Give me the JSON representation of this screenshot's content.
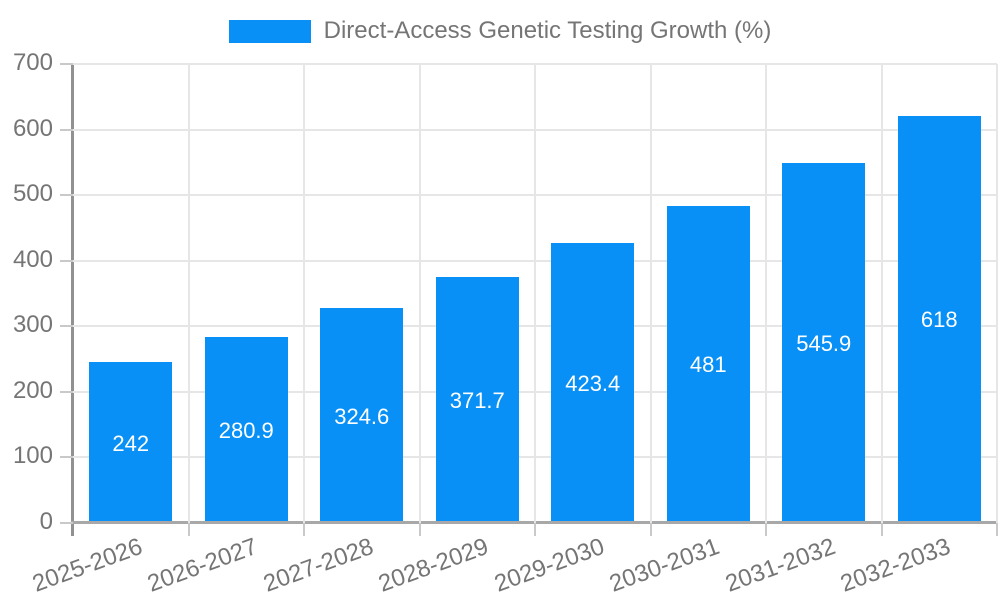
{
  "legend": {
    "label": "Direct-Access Genetic Testing Growth (%)"
  },
  "colors": {
    "bar": "#0890f6",
    "grid": "#e6e6e6",
    "tick": "#c9c9c9",
    "axis_line": "#919191",
    "label_text": "#757575",
    "value_text": "#ffffff",
    "background": "#ffffff"
  },
  "chart_data": {
    "type": "bar",
    "title": "Direct-Access Genetic Testing Growth (%)",
    "categories": [
      "2025-2026",
      "2026-2027",
      "2027-2028",
      "2028-2029",
      "2029-2030",
      "2030-2031",
      "2031-2032",
      "2032-2033"
    ],
    "values": [
      242,
      280.9,
      324.6,
      371.7,
      423.4,
      481,
      545.9,
      618
    ],
    "xlabel": "",
    "ylabel": "",
    "ylim": [
      0,
      700
    ],
    "yticks": [
      0,
      100,
      200,
      300,
      400,
      500,
      600,
      700
    ],
    "grid": true,
    "legend_position": "top",
    "value_labels": "inside-center",
    "x_label_rotation_deg": -20,
    "bar_color": "#0890f6"
  }
}
